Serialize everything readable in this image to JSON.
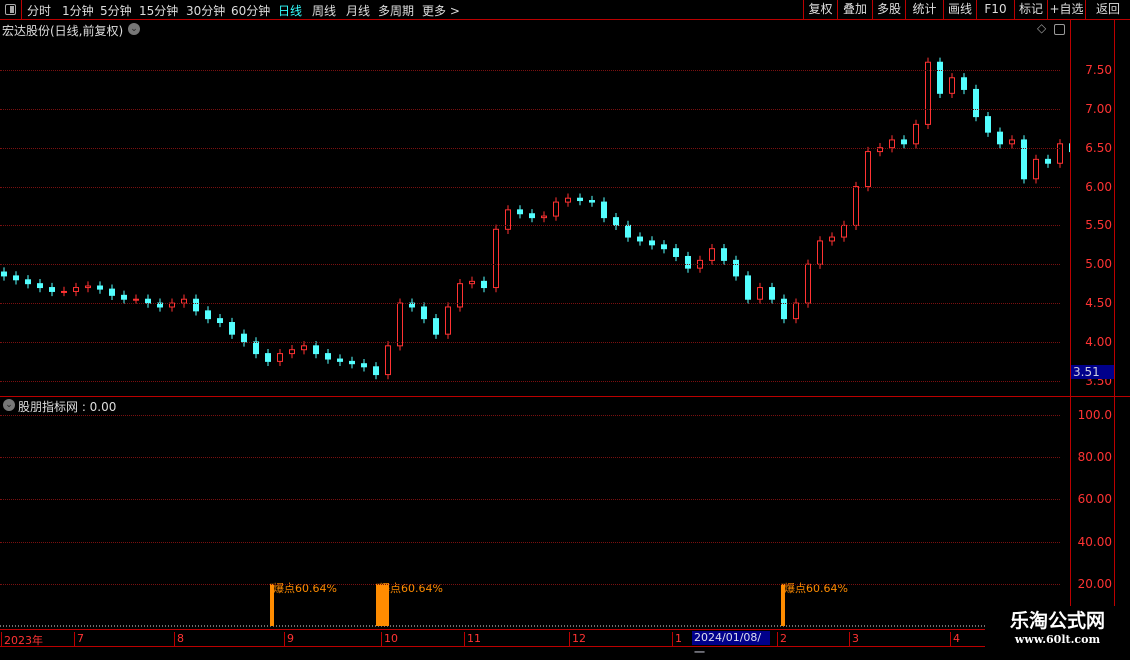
{
  "toolbar": {
    "tabs": [
      "分时",
      "1分钟",
      "5分钟",
      "15分钟",
      "30分钟",
      "60分钟",
      "日线",
      "周线",
      "月线",
      "多周期",
      "更多 >"
    ],
    "active": "日线",
    "buttons": [
      "复权",
      "叠加",
      "多股",
      "统计",
      "画线",
      "F10",
      "标记",
      "+自选",
      "返回"
    ]
  },
  "main": {
    "title": "宏达股份(日线,前复权)",
    "current_price_tag": "3.51"
  },
  "indicator": {
    "title": "股朋指标网 : 0.00",
    "bar_label": "爆点60.64%"
  },
  "colors": {
    "up": "#ff3232",
    "down": "#54ffff",
    "axis": "#ff3333",
    "signal": "#ff8c00"
  },
  "chart_data": [
    {
      "type": "candlestick",
      "ylim": [
        3.5,
        7.9
      ],
      "y_ticks": [
        "7.50",
        "7.00",
        "6.50",
        "6.00",
        "5.50",
        "5.00",
        "4.50",
        "4.00",
        "3.50"
      ],
      "closes": [
        4.85,
        4.8,
        4.75,
        4.7,
        4.65,
        4.65,
        4.7,
        4.72,
        4.68,
        4.6,
        4.55,
        4.55,
        4.5,
        4.45,
        4.5,
        4.55,
        4.4,
        4.3,
        4.25,
        4.1,
        4.0,
        3.85,
        3.75,
        3.85,
        3.9,
        3.95,
        3.85,
        3.78,
        3.75,
        3.72,
        3.68,
        3.58,
        3.95,
        4.5,
        4.45,
        4.3,
        4.1,
        4.45,
        4.75,
        4.78,
        4.7,
        5.45,
        5.7,
        5.65,
        5.6,
        5.62,
        5.8,
        5.85,
        5.82,
        5.8,
        5.6,
        5.5,
        5.35,
        5.3,
        5.25,
        5.2,
        5.1,
        4.95,
        5.05,
        5.2,
        5.05,
        4.85,
        4.55,
        4.7,
        4.55,
        4.3,
        4.5,
        5.0,
        5.3,
        5.35,
        5.5,
        6.0,
        6.45,
        6.5,
        6.6,
        6.55,
        6.8,
        7.6,
        7.2,
        7.4,
        7.25,
        6.9,
        6.7,
        6.55,
        6.6,
        6.1,
        6.35,
        6.3,
        6.55,
        6.45
      ]
    },
    {
      "type": "bar",
      "ylim": [
        0,
        105
      ],
      "y_ticks": [
        "100.0",
        "80.00",
        "60.00",
        "40.00",
        "20.00"
      ],
      "bars": [
        {
          "label": "爆点60.64%",
          "value": 20
        },
        {
          "label": "爆点60.64%",
          "value": 20
        },
        {
          "label": "爆点60.64%",
          "value": 20
        }
      ]
    }
  ],
  "xaxis": {
    "labels": [
      "2023年",
      "7",
      "8",
      "9",
      "10",
      "11",
      "12",
      "1",
      "2",
      "3",
      "4"
    ],
    "cursor_date": "2024/01/08/一"
  },
  "watermark": {
    "name": "乐淘公式网",
    "url": "www.60lt.com"
  }
}
